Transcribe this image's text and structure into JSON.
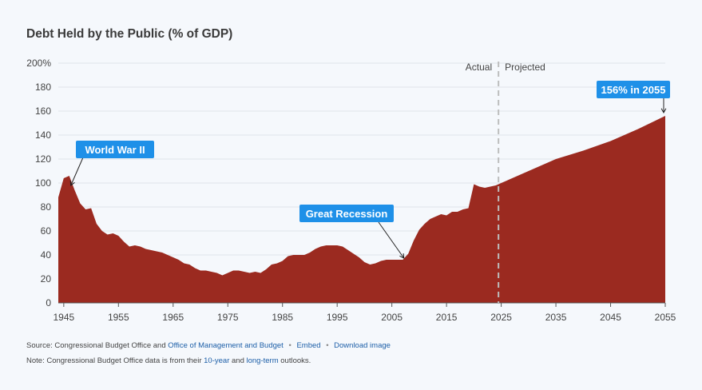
{
  "chart_data": {
    "type": "area",
    "title": "Debt Held by the Public (% of GDP)",
    "xlabel": "",
    "ylabel": "",
    "x_ticks": [
      "1945",
      "1955",
      "1965",
      "1975",
      "1985",
      "1995",
      "2005",
      "2015",
      "2025",
      "2035",
      "2045",
      "2055"
    ],
    "y_ticks": [
      "200%",
      "180",
      "160",
      "140",
      "120",
      "100",
      "80",
      "60",
      "40",
      "20",
      "0"
    ],
    "xlim": [
      1944,
      2055
    ],
    "ylim": [
      0,
      200
    ],
    "grid": true,
    "color": "#9b2a20",
    "divider": {
      "x": 2024.5,
      "left_label": "Actual",
      "right_label": "Projected"
    },
    "x": [
      1944,
      1945,
      1946,
      1947,
      1948,
      1949,
      1950,
      1951,
      1952,
      1953,
      1954,
      1955,
      1956,
      1957,
      1958,
      1959,
      1960,
      1961,
      1962,
      1963,
      1964,
      1965,
      1966,
      1967,
      1968,
      1969,
      1970,
      1971,
      1972,
      1973,
      1974,
      1975,
      1976,
      1977,
      1978,
      1979,
      1980,
      1981,
      1982,
      1983,
      1984,
      1985,
      1986,
      1987,
      1988,
      1989,
      1990,
      1991,
      1992,
      1993,
      1994,
      1995,
      1996,
      1997,
      1998,
      1999,
      2000,
      2001,
      2002,
      2003,
      2004,
      2005,
      2006,
      2007,
      2008,
      2009,
      2010,
      2011,
      2012,
      2013,
      2014,
      2015,
      2016,
      2017,
      2018,
      2019,
      2020,
      2021,
      2022,
      2023,
      2024,
      2025,
      2030,
      2035,
      2040,
      2045,
      2050,
      2055
    ],
    "values": [
      88,
      104,
      106,
      94,
      83,
      78,
      79,
      66,
      60,
      57,
      58,
      56,
      51,
      47,
      48,
      47,
      45,
      44,
      43,
      42,
      40,
      38,
      36,
      33,
      32,
      29,
      27,
      27,
      26,
      25,
      23,
      25,
      27,
      27,
      26,
      25,
      26,
      25,
      28,
      32,
      33,
      35,
      39,
      40,
      40,
      40,
      42,
      45,
      47,
      48,
      48,
      48,
      47,
      44,
      41,
      38,
      34,
      32,
      33,
      35,
      36,
      36,
      36,
      36,
      41,
      52,
      61,
      66,
      70,
      72,
      74,
      73,
      76,
      76,
      78,
      79,
      99,
      97,
      96,
      97,
      98,
      100,
      110,
      120,
      127,
      135,
      145,
      156
    ],
    "annotations": [
      {
        "text": "World War II",
        "x": 1946,
        "y": 106
      },
      {
        "text": "Great Recession",
        "x": 2007.5,
        "y": 36
      },
      {
        "text": "156% in 2055",
        "x": 2055,
        "y": 156
      }
    ]
  },
  "footer": {
    "source_prefix": "Source: Congressional Budget Office and",
    "source_link_omb": "Office of Management and Budget",
    "embed_link": "Embed",
    "download_link": "Download image",
    "note_prefix": "Note: Congressional Budget Office data is from their",
    "note_link_10yr": "10-year",
    "note_and": "and",
    "note_link_longterm": "long-term",
    "note_suffix": "outlooks."
  }
}
